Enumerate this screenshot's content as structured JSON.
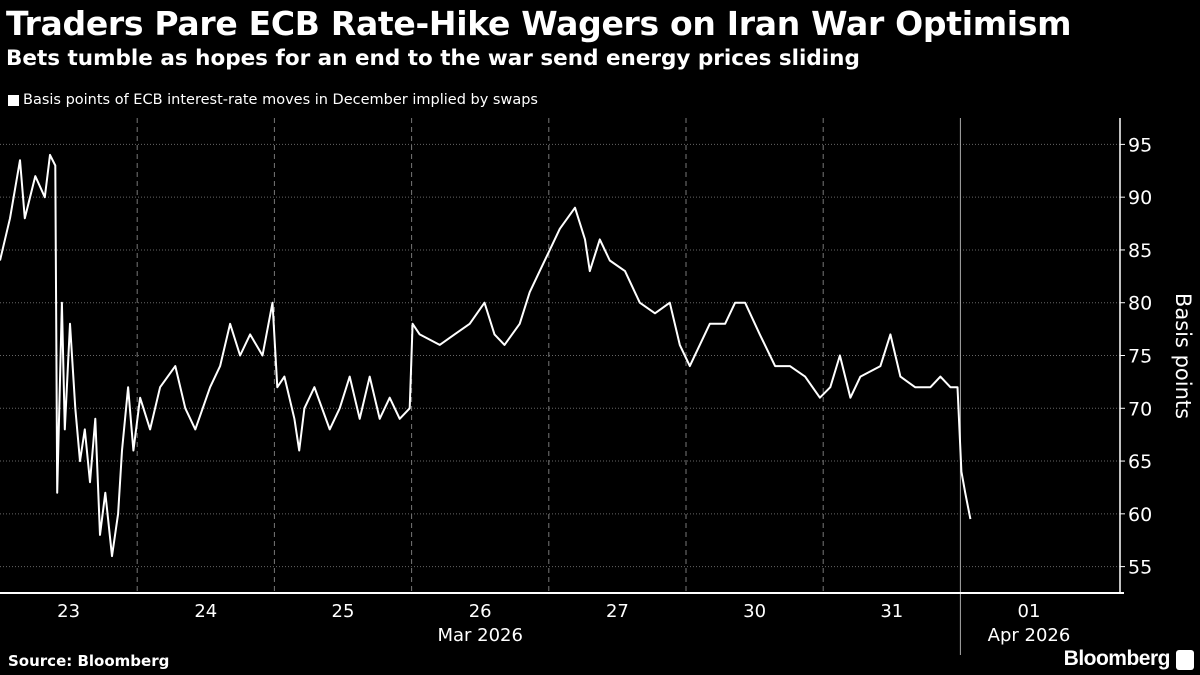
{
  "header": {
    "title": "Traders Pare ECB Rate-Hike Wagers on Iran War Optimism",
    "subtitle": "Bets tumble as hopes for an end to the war send energy prices sliding"
  },
  "footer": {
    "source": "Source: Bloomberg",
    "brand": "Bloomberg"
  },
  "colors": {
    "background": "#000000",
    "line": "#ffffff",
    "grid": "#555555"
  },
  "chart_data": {
    "type": "line",
    "legend": "Basis points of ECB interest-rate moves in December implied by swaps",
    "legend_placement": "top-left",
    "ylabel": "Basis points",
    "y_axis_side": "right",
    "ylim": [
      52.5,
      97.5
    ],
    "yticks": [
      55,
      60,
      65,
      70,
      75,
      80,
      85,
      90,
      95
    ],
    "grid": true,
    "x_days": [
      "2026-03-23",
      "2026-03-24",
      "2026-03-25",
      "2026-03-26",
      "2026-03-27",
      "2026-03-30",
      "2026-03-31",
      "2026-04-01"
    ],
    "x_tick_labels": [
      "23",
      "24",
      "25",
      "26",
      "27",
      "30",
      "31",
      "01"
    ],
    "month_labels": [
      "Mar 2026",
      "Apr 2026"
    ],
    "series": [
      {
        "values": [
          [
            "2026-03-23T00:00",
            84
          ],
          [
            "2026-03-23T01:45",
            88
          ],
          [
            "2026-03-23T03:30",
            93.5
          ],
          [
            "2026-03-23T04:20",
            88
          ],
          [
            "2026-03-23T06:10",
            92
          ],
          [
            "2026-03-23T07:50",
            90
          ],
          [
            "2026-03-23T08:45",
            94
          ],
          [
            "2026-03-23T09:40",
            93
          ],
          [
            "2026-03-23T10:00",
            62
          ],
          [
            "2026-03-23T10:50",
            80
          ],
          [
            "2026-03-23T11:20",
            68
          ],
          [
            "2026-03-23T12:15",
            78
          ],
          [
            "2026-03-23T13:10",
            70
          ],
          [
            "2026-03-23T14:00",
            65
          ],
          [
            "2026-03-23T14:50",
            68
          ],
          [
            "2026-03-23T15:45",
            63
          ],
          [
            "2026-03-23T16:40",
            69
          ],
          [
            "2026-03-23T17:30",
            58
          ],
          [
            "2026-03-23T18:25",
            62
          ],
          [
            "2026-03-23T19:35",
            56
          ],
          [
            "2026-03-23T20:40",
            60
          ],
          [
            "2026-03-23T21:20",
            66
          ],
          [
            "2026-03-23T22:25",
            72
          ],
          [
            "2026-03-23T23:20",
            66
          ],
          [
            "2026-03-24T00:30",
            71
          ],
          [
            "2026-03-24T02:15",
            68
          ],
          [
            "2026-03-24T04:00",
            72
          ],
          [
            "2026-03-24T06:40",
            74
          ],
          [
            "2026-03-24T08:25",
            70
          ],
          [
            "2026-03-24T10:10",
            68
          ],
          [
            "2026-03-24T12:45",
            72
          ],
          [
            "2026-03-24T14:30",
            74
          ],
          [
            "2026-03-24T16:15",
            78
          ],
          [
            "2026-03-24T18:00",
            75
          ],
          [
            "2026-03-24T19:45",
            77
          ],
          [
            "2026-03-24T21:55",
            75
          ],
          [
            "2026-03-24T23:40",
            80
          ],
          [
            "2026-03-25T00:30",
            72
          ],
          [
            "2026-03-25T01:45",
            73
          ],
          [
            "2026-03-25T03:30",
            69
          ],
          [
            "2026-03-25T04:20",
            66
          ],
          [
            "2026-03-25T05:15",
            70
          ],
          [
            "2026-03-25T07:00",
            72
          ],
          [
            "2026-03-25T09:40",
            68
          ],
          [
            "2026-03-25T11:25",
            70
          ],
          [
            "2026-03-25T13:10",
            73
          ],
          [
            "2026-03-25T14:55",
            69
          ],
          [
            "2026-03-25T16:40",
            73
          ],
          [
            "2026-03-25T18:25",
            69
          ],
          [
            "2026-03-25T20:10",
            71
          ],
          [
            "2026-03-25T21:55",
            69
          ],
          [
            "2026-03-25T23:40",
            70
          ],
          [
            "2026-03-26T00:10",
            78
          ],
          [
            "2026-03-26T01:25",
            77
          ],
          [
            "2026-03-26T04:55",
            76
          ],
          [
            "2026-03-26T07:30",
            77
          ],
          [
            "2026-03-26T10:10",
            78
          ],
          [
            "2026-03-26T12:45",
            80
          ],
          [
            "2026-03-26T14:30",
            77
          ],
          [
            "2026-03-26T16:15",
            76
          ],
          [
            "2026-03-26T18:55",
            78
          ],
          [
            "2026-03-26T20:40",
            81
          ],
          [
            "2026-03-26T22:25",
            83
          ],
          [
            "2026-03-27T00:10",
            85
          ],
          [
            "2026-03-27T01:55",
            87
          ],
          [
            "2026-03-27T04:35",
            89
          ],
          [
            "2026-03-27T06:20",
            86
          ],
          [
            "2026-03-27T07:10",
            83
          ],
          [
            "2026-03-27T08:55",
            86
          ],
          [
            "2026-03-27T10:40",
            84
          ],
          [
            "2026-03-27T13:20",
            83
          ],
          [
            "2026-03-27T15:55",
            80
          ],
          [
            "2026-03-27T18:35",
            79
          ],
          [
            "2026-03-27T21:10",
            80
          ],
          [
            "2026-03-27T22:55",
            76
          ],
          [
            "2026-03-30T00:40",
            74
          ],
          [
            "2026-03-30T02:25",
            76
          ],
          [
            "2026-03-30T04:10",
            78
          ],
          [
            "2026-03-30T06:50",
            78
          ],
          [
            "2026-03-30T08:35",
            80
          ],
          [
            "2026-03-30T10:20",
            80
          ],
          [
            "2026-03-30T12:55",
            77
          ],
          [
            "2026-03-30T15:35",
            74
          ],
          [
            "2026-03-30T18:10",
            74
          ],
          [
            "2026-03-30T20:50",
            73
          ],
          [
            "2026-03-30T23:25",
            71
          ],
          [
            "2026-03-31T01:15",
            72
          ],
          [
            "2026-03-31T02:55",
            75
          ],
          [
            "2026-03-31T04:45",
            71
          ],
          [
            "2026-03-31T06:30",
            73
          ],
          [
            "2026-03-31T10:00",
            74
          ],
          [
            "2026-03-31T11:45",
            77
          ],
          [
            "2026-03-31T13:30",
            73
          ],
          [
            "2026-03-31T16:05",
            72
          ],
          [
            "2026-03-31T18:45",
            72
          ],
          [
            "2026-03-31T20:30",
            73
          ],
          [
            "2026-03-31T22:15",
            72
          ],
          [
            "2026-03-31T23:30",
            72
          ],
          [
            "2026-04-01T00:10",
            64
          ],
          [
            "2026-04-01T00:50",
            62
          ],
          [
            "2026-04-01T01:45",
            59.5
          ]
        ]
      }
    ]
  }
}
